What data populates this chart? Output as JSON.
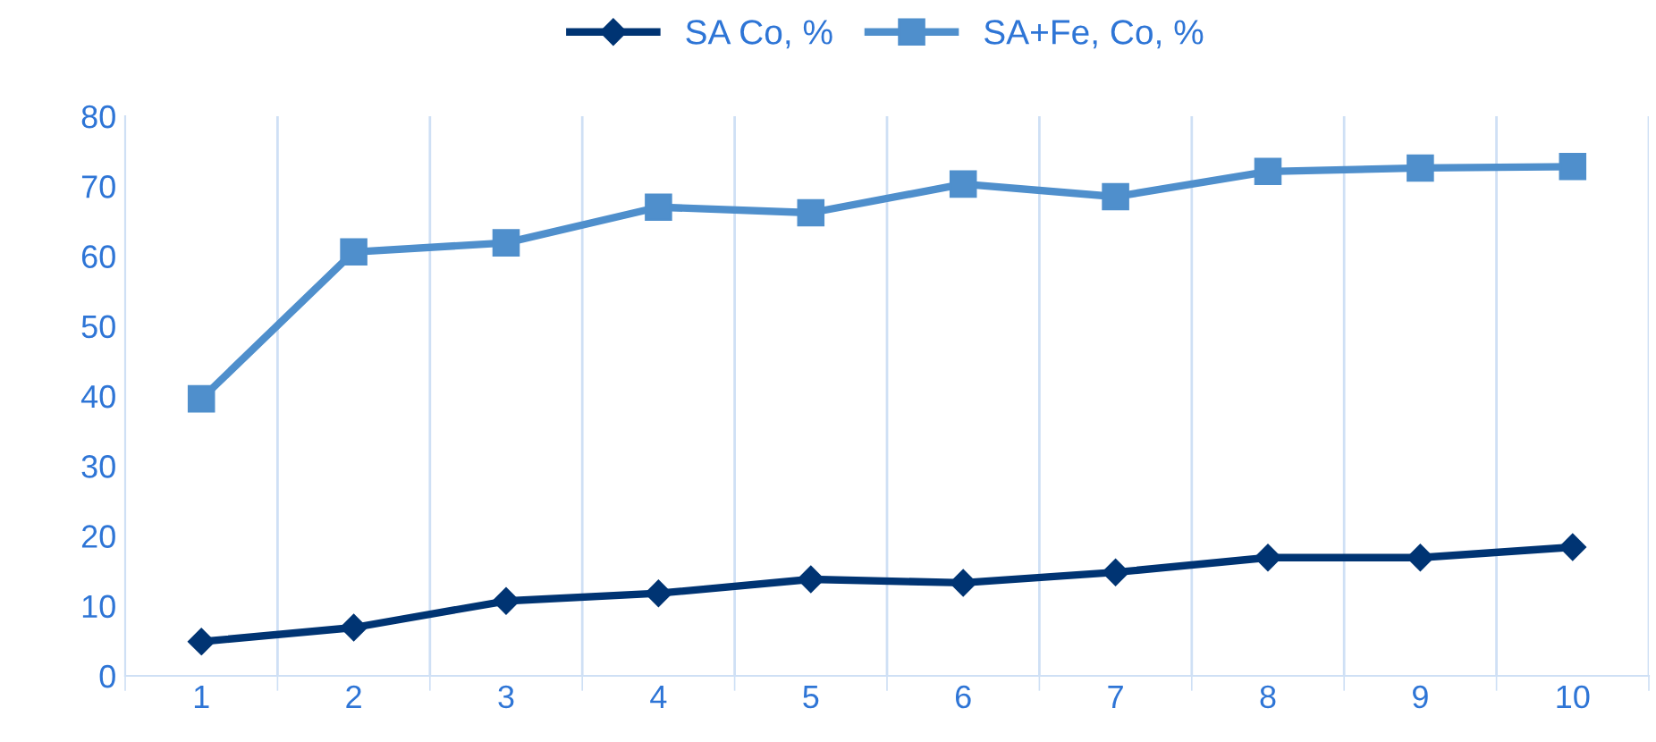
{
  "chart_data": {
    "type": "line",
    "categories": [
      "1",
      "2",
      "3",
      "4",
      "5",
      "6",
      "7",
      "8",
      "9",
      "10"
    ],
    "series": [
      {
        "name": "SA Co, %",
        "color": "#003473",
        "marker": "diamond",
        "values": [
          4.9,
          6.9,
          10.7,
          11.8,
          13.8,
          13.3,
          14.8,
          16.9,
          16.9,
          18.4
        ]
      },
      {
        "name": "SA+Fe, Co, %",
        "color": "#4f8fcc",
        "marker": "square",
        "values": [
          39.6,
          60.6,
          61.9,
          67.0,
          66.2,
          70.3,
          68.5,
          72.1,
          72.6,
          72.8
        ]
      }
    ],
    "ylim": [
      0,
      80
    ],
    "yticks": [
      0,
      10,
      20,
      30,
      40,
      50,
      60,
      70,
      80
    ],
    "grid": "x",
    "legend": "top",
    "line_style": "solid"
  }
}
